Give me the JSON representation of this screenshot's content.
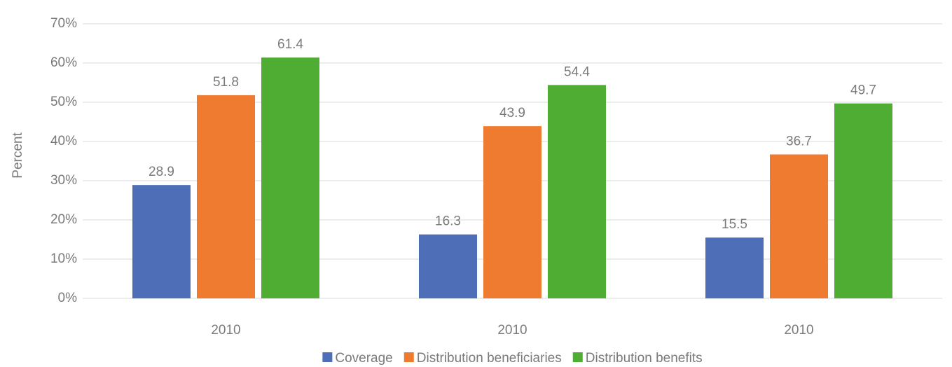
{
  "chart_data": {
    "type": "bar",
    "y_label": "Percent",
    "categories": [
      "2010",
      "2010",
      "2010"
    ],
    "series": [
      {
        "name": "Coverage",
        "color": "#4e6fb8",
        "values": [
          28.9,
          16.3,
          15.5
        ]
      },
      {
        "name": "Distribution beneficiaries",
        "color": "#ef7b30",
        "values": [
          51.8,
          43.9,
          36.7
        ]
      },
      {
        "name": "Distribution benefits",
        "color": "#50ad34",
        "values": [
          61.4,
          54.4,
          49.7
        ]
      }
    ],
    "ylim": [
      0,
      70
    ],
    "yticks": [
      {
        "value": 0,
        "label": "0%"
      },
      {
        "value": 10,
        "label": "10%"
      },
      {
        "value": 20,
        "label": "20%"
      },
      {
        "value": 30,
        "label": "30%"
      },
      {
        "value": 40,
        "label": "40%"
      },
      {
        "value": 50,
        "label": "50%"
      },
      {
        "value": 60,
        "label": "60%"
      },
      {
        "value": 70,
        "label": "70%"
      }
    ],
    "grid": true,
    "legend": "bottom"
  }
}
